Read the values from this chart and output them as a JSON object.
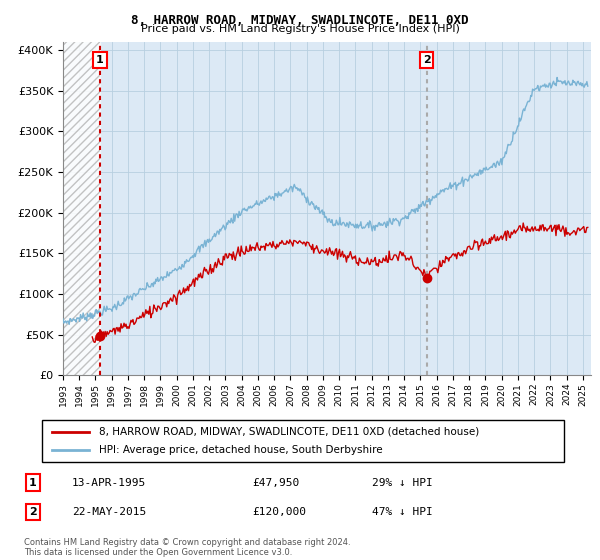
{
  "title": "8, HARROW ROAD, MIDWAY, SWADLINCOTE, DE11 0XD",
  "subtitle": "Price paid vs. HM Land Registry's House Price Index (HPI)",
  "ylabel_ticks": [
    "£0",
    "£50K",
    "£100K",
    "£150K",
    "£200K",
    "£250K",
    "£300K",
    "£350K",
    "£400K"
  ],
  "ytick_values": [
    0,
    50000,
    100000,
    150000,
    200000,
    250000,
    300000,
    350000,
    400000
  ],
  "ylim": [
    0,
    410000
  ],
  "xlim_start": 1993.0,
  "xlim_end": 2025.5,
  "transaction1": {
    "date_num": 1995.28,
    "price": 47950,
    "label": "1",
    "annotation": "13-APR-1995",
    "amount": "£47,950",
    "pct": "29% ↓ HPI"
  },
  "transaction2": {
    "date_num": 2015.39,
    "price": 120000,
    "label": "2",
    "annotation": "22-MAY-2015",
    "amount": "£120,000",
    "pct": "47% ↓ HPI"
  },
  "legend_line1": "8, HARROW ROAD, MIDWAY, SWADLINCOTE, DE11 0XD (detached house)",
  "legend_line2": "HPI: Average price, detached house, South Derbyshire",
  "footer": "Contains HM Land Registry data © Crown copyright and database right 2024.\nThis data is licensed under the Open Government Licence v3.0.",
  "hpi_color": "#7ab3d4",
  "price_color": "#cc0000",
  "bg_color": "#ffffff",
  "plot_bg_color": "#dce9f5",
  "grid_color": "#b8cfe0",
  "xticks": [
    1993,
    1994,
    1995,
    1996,
    1997,
    1998,
    1999,
    2000,
    2001,
    2002,
    2003,
    2004,
    2005,
    2006,
    2007,
    2008,
    2009,
    2010,
    2011,
    2012,
    2013,
    2014,
    2015,
    2016,
    2017,
    2018,
    2019,
    2020,
    2021,
    2022,
    2023,
    2024,
    2025
  ]
}
